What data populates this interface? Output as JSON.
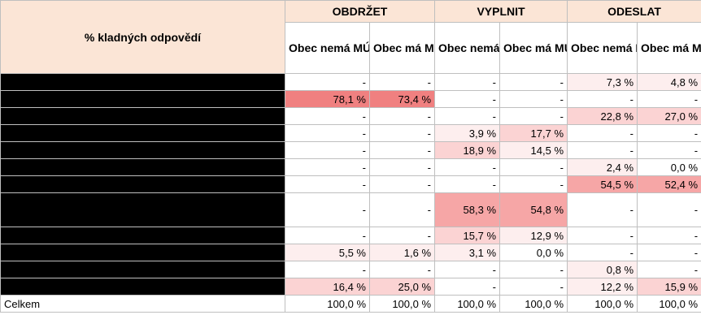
{
  "header": {
    "corner_label": "% kladných odpovědí",
    "groups": [
      "OBDRŽET",
      "VYPLNIT",
      "ODESLAT"
    ],
    "subheaders": [
      "Obec nemá MÚ ani SÚ",
      "Obec má MÚ ani SÚ",
      "Obec nemá MÚ ani SÚ",
      "Obec má MÚ ani SÚ",
      "Obec nemá MÚ ani SÚ",
      "Obec má MÚ ani SÚ"
    ]
  },
  "rows": [
    {
      "label": "",
      "values": [
        "-",
        "-",
        "-",
        "-",
        "7,3 %",
        "4,8 %"
      ]
    },
    {
      "label": "",
      "values": [
        "78,1 %",
        "73,4 %",
        "-",
        "-",
        "-",
        "-"
      ]
    },
    {
      "label": "",
      "values": [
        "-",
        "-",
        "-",
        "-",
        "22,8 %",
        "27,0 %"
      ]
    },
    {
      "label": "",
      "values": [
        "-",
        "-",
        "3,9 %",
        "17,7 %",
        "-",
        "-"
      ]
    },
    {
      "label": "",
      "values": [
        "-",
        "-",
        "18,9 %",
        "14,5 %",
        "-",
        "-"
      ]
    },
    {
      "label": "",
      "values": [
        "-",
        "-",
        "-",
        "-",
        "2,4 %",
        "0,0 %"
      ]
    },
    {
      "label": "",
      "values": [
        "-",
        "-",
        "-",
        "-",
        "54,5 %",
        "52,4 %"
      ]
    },
    {
      "label": "",
      "values": [
        "-",
        "-",
        "58,3 %",
        "54,8 %",
        "-",
        "-"
      ]
    },
    {
      "label": "",
      "values": [
        "-",
        "-",
        "15,7 %",
        "12,9 %",
        "-",
        "-"
      ]
    },
    {
      "label": "",
      "values": [
        "5,5 %",
        "1,6 %",
        "3,1 %",
        "0,0 %",
        "-",
        "-"
      ]
    },
    {
      "label": "",
      "values": [
        "-",
        "-",
        "-",
        "-",
        "0,8 %",
        "-"
      ]
    },
    {
      "label": "",
      "values": [
        "16,4 %",
        "25,0 %",
        "-",
        "-",
        "12,2 %",
        "15,9 %"
      ]
    }
  ],
  "total": {
    "label": "Celkem",
    "values": [
      "100,0 %",
      "100,0 %",
      "100,0 %",
      "100,0 %",
      "100,0 %",
      "100,0 %"
    ]
  },
  "heat_colors": {
    "none": "#ffffff",
    "low": "#fdeeee",
    "mid": "#fbd3d3",
    "high": "#f6a6a6",
    "max": "#f08080"
  }
}
